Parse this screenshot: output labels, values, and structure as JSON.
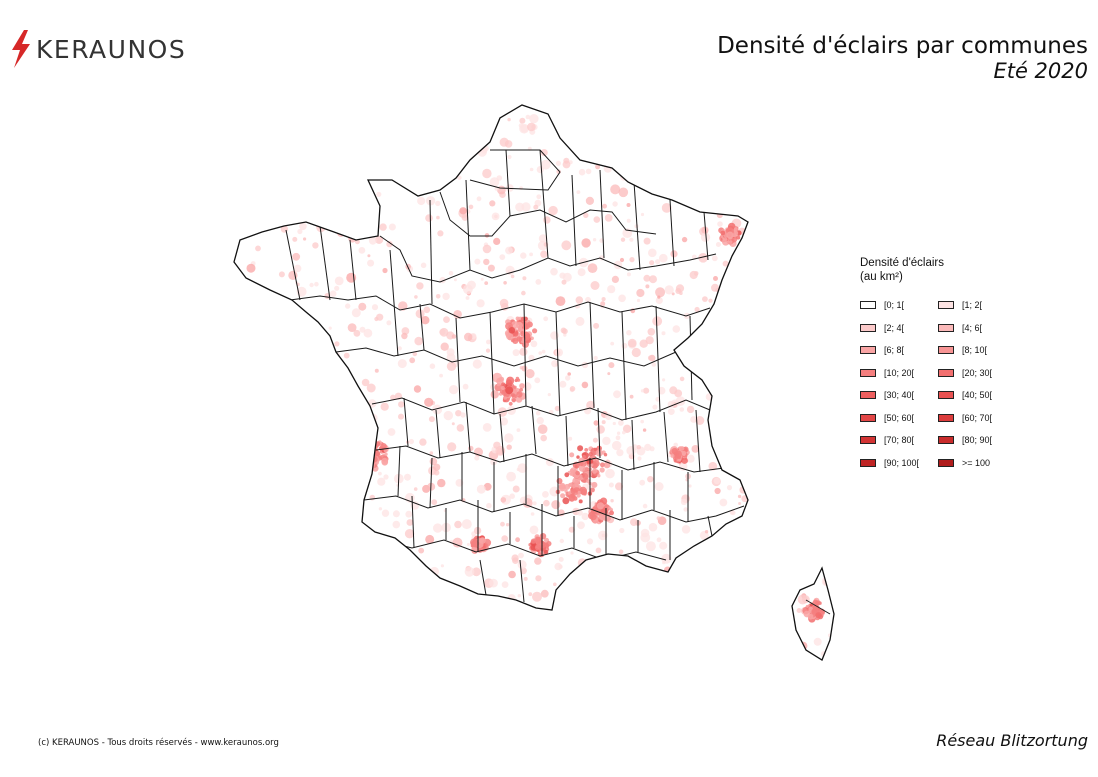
{
  "brand": {
    "name": "KERAUNOS",
    "bolt_color": "#d62828"
  },
  "title": {
    "main": "Densité d'éclairs par communes",
    "sub": "Eté 2020"
  },
  "legend": {
    "title_line1": "Densité d'éclairs",
    "title_line2": "(au km²)",
    "classes": [
      {
        "label": "[0; 1[",
        "color": "#ffffff"
      },
      {
        "label": "[1; 2[",
        "color": "#fde3e3"
      },
      {
        "label": "[2; 4[",
        "color": "#fccaca"
      },
      {
        "label": "[4; 6[",
        "color": "#fbb9b9"
      },
      {
        "label": "[6; 8[",
        "color": "#f9a4a4"
      },
      {
        "label": "[8; 10[",
        "color": "#f79494"
      },
      {
        "label": "[10; 20[",
        "color": "#f57f7f"
      },
      {
        "label": "[20; 30[",
        "color": "#f26f6f"
      },
      {
        "label": "[30; 40[",
        "color": "#ee5f5f"
      },
      {
        "label": "[40; 50[",
        "color": "#e95252"
      },
      {
        "label": "[50; 60[",
        "color": "#e34646"
      },
      {
        "label": "[60; 70[",
        "color": "#dc3c3c"
      },
      {
        "label": "[70; 80[",
        "color": "#d33434"
      },
      {
        "label": "[80; 90[",
        "color": "#c92c2c"
      },
      {
        "label": "[90; 100[",
        "color": "#bf2424"
      },
      {
        "label": ">= 100",
        "color": "#b01c1c"
      }
    ]
  },
  "footer": {
    "copyright": "(c) KERAUNOS - Tous droits réservés - www.keraunos.org",
    "network": "Réseau Blitzortung"
  }
}
